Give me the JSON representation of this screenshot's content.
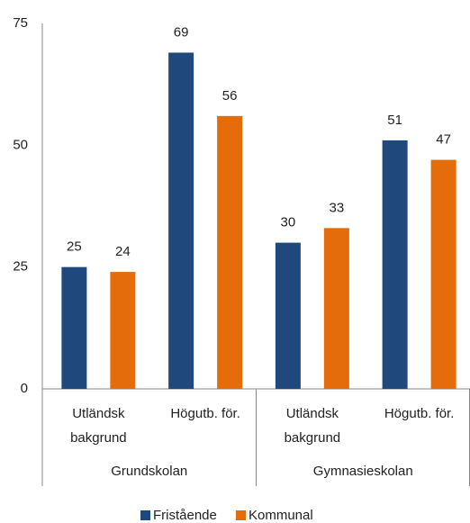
{
  "chart_data": {
    "type": "bar",
    "categories": [
      "Utländsk bakgrund",
      "Högutb. för.",
      "Utländsk bakgrund",
      "Högutb. för."
    ],
    "groups": [
      "Grundskolan",
      "Gymnasieskolan"
    ],
    "series": [
      {
        "name": "Fristående",
        "color": "#1f497d",
        "values": [
          25,
          69,
          30,
          51
        ]
      },
      {
        "name": "Kommunal",
        "color": "#e46c0a",
        "values": [
          24,
          56,
          33,
          47
        ]
      }
    ],
    "ylim": [
      0,
      75
    ],
    "yticks": [
      0,
      25,
      50,
      75
    ],
    "grid": false,
    "legend": "bottom"
  }
}
